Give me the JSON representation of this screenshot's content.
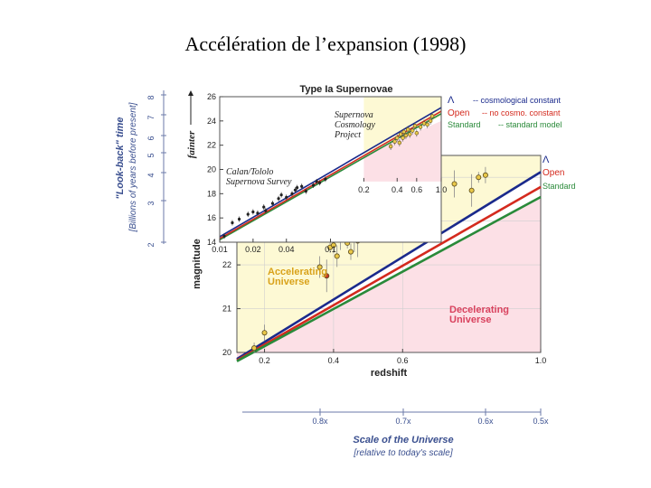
{
  "slide": {
    "title": "Accélération de l’expansion (1998)"
  },
  "chart_data": [
    {
      "type": "scatter",
      "title": "Type Ia Supernovae",
      "xlabel": "redshift",
      "ylabel": "magnitude",
      "xlim": [
        0.12,
        1.0
      ],
      "ylim": [
        20,
        24.5
      ],
      "x_ticks": [
        "0.2",
        "0.4",
        "0.6",
        "1.0"
      ],
      "y_ticks": [
        "20",
        "21",
        "22"
      ],
      "legend": [
        {
          "symbol": "Λ",
          "name": "Λ",
          "desc": "-- cosmological constant",
          "color": "#1a2a8c"
        },
        {
          "symbol": "Open",
          "name": "Open",
          "desc": "-- no cosmo. constant",
          "color": "#d42a1e"
        },
        {
          "symbol": "Standard",
          "name": "Standard",
          "desc": "-- standard model",
          "color": "#2a8a3a"
        }
      ],
      "line_labels": [
        "Λ",
        "Open",
        "Standard"
      ],
      "region_labels": {
        "accelerating": [
          "Accelerating",
          "Universe"
        ],
        "decelerating": [
          "Decelerating",
          "Universe"
        ]
      },
      "series": [
        {
          "name": "Λ",
          "color": "#1a2a8c",
          "x": [
            0.12,
            1.0
          ],
          "y": [
            19.85,
            24.12
          ]
        },
        {
          "name": "Open",
          "color": "#d42a1e",
          "x": [
            0.12,
            1.0
          ],
          "y": [
            19.82,
            23.78
          ]
        },
        {
          "name": "Standard",
          "color": "#2a8a3a",
          "x": [
            0.12,
            1.0
          ],
          "y": [
            19.8,
            23.55
          ]
        },
        {
          "name": "High-z supernovae",
          "kind": "points",
          "x": [
            0.17,
            0.2,
            0.36,
            0.38,
            0.38,
            0.39,
            0.4,
            0.41,
            0.42,
            0.43,
            0.44,
            0.45,
            0.46,
            0.46,
            0.47,
            0.48,
            0.5,
            0.51,
            0.52,
            0.55,
            0.56,
            0.57,
            0.6,
            0.62,
            0.63,
            0.65,
            0.66,
            0.7,
            0.75,
            0.8,
            0.82,
            0.84
          ],
          "y": [
            20.1,
            20.45,
            21.95,
            23.0,
            21.75,
            22.4,
            22.45,
            22.2,
            22.65,
            22.9,
            22.5,
            22.3,
            23.1,
            22.6,
            22.55,
            22.95,
            22.75,
            23.6,
            22.95,
            23.2,
            23.35,
            23.65,
            23.05,
            23.4,
            23.5,
            23.4,
            23.7,
            23.45,
            23.85,
            23.7,
            24.0,
            24.05
          ]
        }
      ]
    },
    {
      "type": "scatter",
      "xlabel": "",
      "ylabel": "fainter",
      "xlim": [
        0.01,
        1.0
      ],
      "xscale": "log",
      "ylim": [
        14,
        26
      ],
      "x_ticks": [
        "0.01",
        "0.02",
        "0.04",
        "0.1",
        "0.2",
        "0.4",
        "0.6",
        "1.0"
      ],
      "y_ticks": [
        "14",
        "16",
        "18",
        "20",
        "22",
        "24",
        "26"
      ],
      "annotations": {
        "project": [
          "Supernova",
          "Cosmology",
          "Project"
        ],
        "survey": [
          "Calan/Tololo",
          "Supernova Survey"
        ]
      },
      "series": [
        {
          "name": "Calan/Tololo Supernova Survey",
          "kind": "points",
          "x": [
            0.011,
            0.013,
            0.015,
            0.018,
            0.02,
            0.022,
            0.025,
            0.026,
            0.03,
            0.034,
            0.036,
            0.04,
            0.045,
            0.048,
            0.05,
            0.055,
            0.06,
            0.07,
            0.075,
            0.08,
            0.09
          ],
          "y": [
            14.5,
            15.6,
            15.9,
            16.3,
            16.5,
            16.4,
            16.9,
            16.6,
            17.2,
            17.6,
            17.9,
            17.7,
            18.0,
            18.3,
            18.5,
            18.6,
            18.2,
            18.7,
            19.0,
            18.9,
            19.2
          ]
        },
        {
          "name": "Supernova Cosmology Project",
          "kind": "points",
          "x": [
            0.35,
            0.38,
            0.4,
            0.42,
            0.43,
            0.45,
            0.46,
            0.48,
            0.5,
            0.52,
            0.55,
            0.58,
            0.6,
            0.65,
            0.7,
            0.75,
            0.8,
            0.83
          ],
          "y": [
            21.9,
            22.3,
            22.6,
            22.2,
            22.9,
            22.6,
            23.1,
            22.8,
            23.3,
            22.9,
            23.2,
            23.6,
            23.0,
            23.5,
            23.8,
            23.7,
            24.0,
            24.4
          ]
        }
      ]
    },
    {
      "type": "axis",
      "title": "\"Look-back\" time",
      "ylabel": "[Billions of years before present]",
      "ticks": [
        "2",
        "3",
        "4",
        "5",
        "6",
        "7",
        "8"
      ]
    },
    {
      "type": "axis",
      "title": "Scale of the Universe",
      "xlabel": "[relative to today's scale]",
      "ticks": [
        "0.8x",
        "0.7x",
        "0.6x",
        "0.5x"
      ]
    }
  ]
}
